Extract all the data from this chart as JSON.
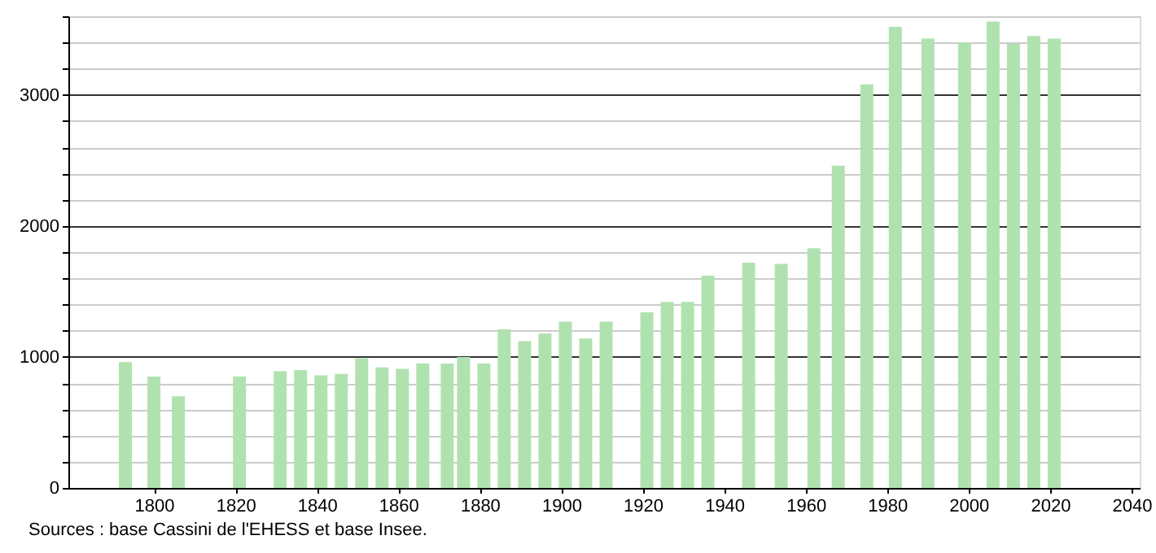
{
  "chart_data": {
    "type": "bar",
    "annotations": [
      "Sources : base Cassini de l'EHESS et base Insee."
    ],
    "x": [
      1793,
      1800,
      1806,
      1821,
      1831,
      1836,
      1841,
      1846,
      1851,
      1856,
      1861,
      1866,
      1872,
      1876,
      1881,
      1886,
      1891,
      1896,
      1901,
      1906,
      1911,
      1921,
      1926,
      1931,
      1936,
      1946,
      1954,
      1962,
      1968,
      1975,
      1982,
      1990,
      1999,
      2006,
      2011,
      2016,
      2021
    ],
    "values": [
      960,
      850,
      700,
      850,
      890,
      900,
      860,
      870,
      990,
      920,
      910,
      950,
      950,
      1000,
      950,
      1210,
      1120,
      1180,
      1270,
      1140,
      1270,
      1340,
      1420,
      1420,
      1620,
      1720,
      1710,
      1830,
      2460,
      3080,
      3520,
      3430,
      3400,
      3560,
      3390,
      3450,
      3430
    ],
    "color": "#b0e2b0",
    "xlim": [
      1779,
      2042
    ],
    "xticks": [
      1800,
      1820,
      1840,
      1860,
      1880,
      1900,
      1920,
      1940,
      1960,
      1980,
      2000,
      2020,
      2040
    ],
    "ylim": [
      0,
      3600
    ],
    "yticks": [
      0,
      {
        "value": 200,
        "label": null
      },
      {
        "value": 400,
        "label": null
      },
      {
        "value": 600,
        "label": null
      },
      {
        "value": 800,
        "label": null
      },
      1000,
      {
        "value": 1200,
        "label": null
      },
      {
        "value": 1400,
        "label": null
      },
      {
        "value": 1600,
        "label": null
      },
      {
        "value": 1800,
        "label": null
      },
      2000,
      {
        "value": 2200,
        "label": null
      },
      {
        "value": 2400,
        "label": null
      },
      {
        "value": 2600,
        "label": null
      },
      {
        "value": 2800,
        "label": null
      },
      3000,
      {
        "value": 3200,
        "label": null
      },
      {
        "value": 3400,
        "label": null
      },
      {
        "value": 3600,
        "label": null
      }
    ],
    "grid": "y"
  }
}
